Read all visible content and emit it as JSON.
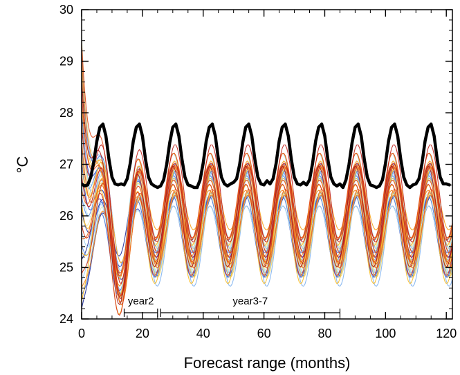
{
  "chart_data": {
    "type": "line",
    "title": "",
    "xlabel": "Forecast range (months)",
    "ylabel": "°C",
    "xlim": [
      0,
      122
    ],
    "ylim": [
      24,
      30
    ],
    "xticks": [
      "0",
      "20",
      "40",
      "60",
      "80",
      "100",
      "120"
    ],
    "yticks": [
      "24",
      "25",
      "26",
      "27",
      "28",
      "29",
      "30"
    ],
    "grid": false,
    "legend": "none",
    "observed": {
      "color": "#000000",
      "x": [
        0,
        1,
        2,
        3,
        4,
        5,
        6,
        7,
        8,
        9,
        10,
        11,
        12,
        13,
        14,
        15,
        16,
        17,
        18,
        19,
        20,
        21,
        22,
        23,
        24,
        25,
        26,
        27,
        28,
        29,
        30,
        31,
        32,
        33,
        34,
        35,
        36,
        37,
        38,
        39,
        40,
        41,
        42,
        43,
        44,
        45,
        46,
        47,
        48,
        49,
        50,
        51,
        52,
        53,
        54,
        55,
        56,
        57,
        58,
        59,
        60,
        61,
        62,
        63,
        64,
        65,
        66,
        67,
        68,
        69,
        70,
        71,
        72,
        73,
        74,
        75,
        76,
        77,
        78,
        79,
        80,
        81,
        82,
        83,
        84,
        85,
        86,
        87,
        88,
        89,
        90,
        91,
        92,
        93,
        94,
        95,
        96,
        97,
        98,
        99,
        100,
        101,
        102,
        103,
        104,
        105,
        106,
        107,
        108,
        109,
        110,
        111,
        112,
        113,
        114,
        115,
        116,
        117,
        118,
        119,
        120,
        121
      ],
      "values": [
        26.62,
        26.58,
        26.6,
        26.75,
        27.05,
        27.45,
        27.72,
        27.78,
        27.55,
        27.1,
        26.75,
        26.62,
        26.6,
        26.62,
        26.6,
        26.72,
        27.02,
        27.45,
        27.72,
        27.78,
        27.55,
        27.1,
        26.75,
        26.62,
        26.58,
        26.55,
        26.58,
        26.7,
        27.0,
        27.42,
        27.72,
        27.78,
        27.55,
        27.1,
        26.75,
        26.6,
        26.58,
        26.55,
        26.55,
        26.7,
        27.02,
        27.45,
        27.72,
        27.78,
        27.55,
        27.1,
        26.75,
        26.62,
        26.58,
        26.62,
        26.65,
        26.72,
        27.0,
        27.42,
        27.72,
        27.78,
        27.55,
        27.1,
        26.75,
        26.62,
        26.6,
        26.68,
        26.62,
        26.72,
        27.02,
        27.45,
        27.72,
        27.78,
        27.55,
        27.1,
        26.75,
        26.62,
        26.6,
        26.65,
        26.6,
        26.7,
        27.02,
        27.45,
        27.72,
        27.78,
        27.55,
        27.1,
        26.75,
        26.62,
        26.58,
        26.62,
        26.55,
        26.7,
        27.0,
        27.42,
        27.72,
        27.78,
        27.55,
        27.1,
        26.75,
        26.6,
        26.58,
        26.55,
        26.58,
        26.7,
        27.02,
        27.45,
        27.72,
        27.78,
        27.55,
        27.1,
        26.75,
        26.6,
        26.55,
        26.6,
        26.62,
        26.72,
        27.02,
        27.45,
        27.72,
        27.78,
        27.55,
        27.1,
        26.75,
        26.62,
        26.62,
        26.6
      ]
    },
    "ensemble": {
      "members": 40,
      "colors": [
        "#1f2f9c",
        "#2b47c4",
        "#3f6fd8",
        "#5a8fe6",
        "#7fb2f0",
        "#9fd0f5",
        "#b7e6f2",
        "#d7eccd",
        "#eee3a0",
        "#f7d35b",
        "#fbbd23",
        "#f8a21a",
        "#f3851e",
        "#ec6a1f",
        "#e24e1d",
        "#d4361c",
        "#c0241d",
        "#a51b1e"
      ],
      "initial_spread": [
        24.2,
        29.5
      ],
      "mean_level": [
        25.8,
        26.1
      ],
      "amplitude": [
        0.6,
        1.0
      ],
      "period_months": 12
    },
    "annotations": [
      {
        "label": "year2",
        "x_start": 14,
        "x_end": 25
      },
      {
        "label": "year3-7",
        "x_start": 26,
        "x_end": 85
      }
    ]
  }
}
